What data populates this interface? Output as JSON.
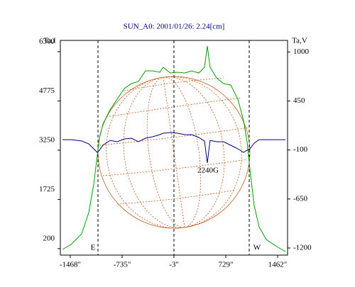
{
  "chart_data": {
    "type": "line",
    "title": "SUN_A0: 2001/01/26: 2.24[cm]",
    "y_label": "Ta,I",
    "y2_label": "Ta,V",
    "annotations": [
      "E",
      "W",
      "2240G"
    ],
    "x": [
      -1578,
      -1458,
      -1307,
      -1207,
      -1137,
      -1086,
      -1056,
      -1006,
      -906,
      -806,
      -705,
      -605,
      -505,
      -405,
      -304,
      -204,
      -154,
      -54,
      47,
      147,
      248,
      348,
      428,
      468,
      508,
      599,
      699,
      799,
      900,
      980,
      1030,
      1071,
      1131,
      1200,
      1301,
      1451,
      1572
    ],
    "series": [
      {
        "name": "Ta,I",
        "color": "#00a000",
        "axis": "y",
        "values": [
          176,
          329,
          659,
          1317,
          2195,
          3073,
          3622,
          4061,
          4500,
          4829,
          5158,
          5312,
          5378,
          5707,
          5707,
          5663,
          5817,
          5641,
          5663,
          5641,
          5707,
          5641,
          5817,
          6475,
          5817,
          5488,
          5312,
          5268,
          4829,
          4171,
          3512,
          2634,
          1537,
          878,
          483,
          263,
          110
        ]
      },
      {
        "name": "Ta,V",
        "color": "#000080",
        "axis": "y2",
        "values": [
          16,
          16,
          1,
          -31,
          -87,
          -127,
          -103,
          -47,
          8,
          -7,
          24,
          32,
          -7,
          32,
          48,
          72,
          88,
          96,
          88,
          72,
          72,
          40,
          0,
          -246,
          8,
          -7,
          -7,
          -47,
          -87,
          -127,
          -103,
          -87,
          -23,
          16,
          16,
          16,
          16
        ]
      }
    ],
    "xlim": [
      -1608,
      1602
    ],
    "xticks": [
      {
        "value": -1468,
        "label": "-1468\""
      },
      {
        "value": -735,
        "label": "-735\""
      },
      {
        "value": -3,
        "label": "-3\""
      },
      {
        "value": 729,
        "label": "729\""
      },
      {
        "value": 1462,
        "label": "1462\""
      }
    ],
    "ylim": [
      0,
      6650
    ],
    "yticks": [
      200,
      1725,
      3250,
      4775,
      6300
    ],
    "y2lim": [
      -1280,
      1130
    ],
    "y2ticks": [
      -1200,
      -650,
      -100,
      450,
      1000
    ]
  }
}
